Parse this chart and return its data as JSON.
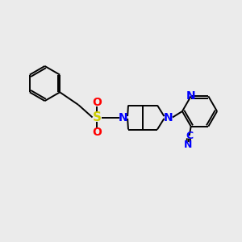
{
  "background_color": "#EBEBEB",
  "bond_color": "#000000",
  "N_color": "#0000FF",
  "S_color": "#CCCC00",
  "O_color": "#FF0000",
  "C_color": "#000000",
  "figsize": [
    3.0,
    3.0
  ],
  "dpi": 100,
  "xlim": [
    0,
    10
  ],
  "ylim": [
    0,
    10
  ]
}
